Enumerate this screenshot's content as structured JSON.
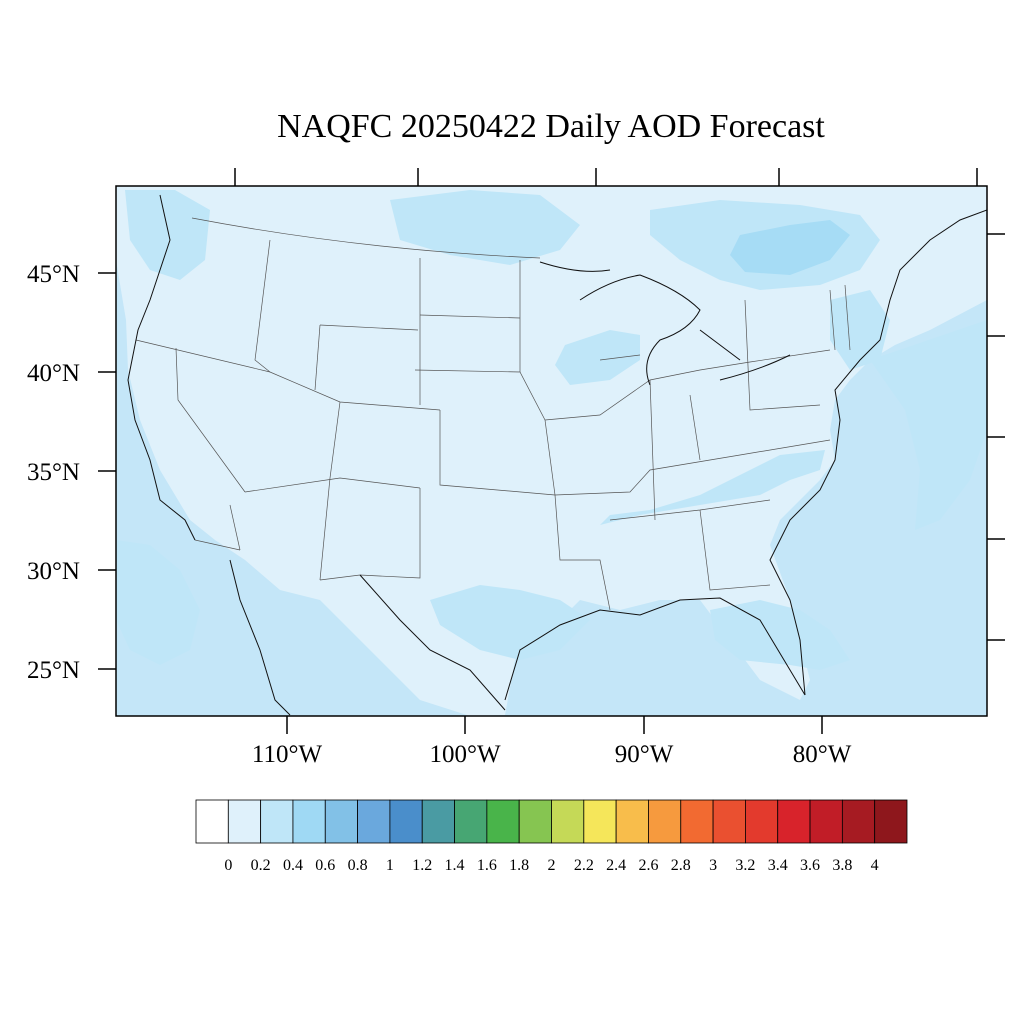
{
  "title": "NAQFC 20250422 Daily AOD Forecast",
  "lat_labels": [
    "45°N",
    "40°N",
    "35°N",
    "30°N",
    "25°N"
  ],
  "lon_labels": [
    "110°W",
    "100°W",
    "90°W",
    "80°W"
  ],
  "colorbar": {
    "tick_labels": [
      "0",
      "0.2",
      "0.4",
      "0.6",
      "0.8",
      "1",
      "1.2",
      "1.4",
      "1.6",
      "1.8",
      "2",
      "2.2",
      "2.4",
      "2.6",
      "2.8",
      "3",
      "3.2",
      "3.4",
      "3.6",
      "3.8",
      "4"
    ],
    "colors": [
      "#ffffff",
      "#dff1fb",
      "#bfe6f8",
      "#9fd9f4",
      "#82c1e7",
      "#6aa8dd",
      "#4a8ecb",
      "#4a9ba3",
      "#47a673",
      "#49b44a",
      "#86c551",
      "#c5d957",
      "#f5e65a",
      "#f8bd4b",
      "#f69a3e",
      "#f26a31",
      "#ea5030",
      "#e33a2d",
      "#d8232b",
      "#c11d27",
      "#a61b22",
      "#8e171c"
    ]
  }
}
